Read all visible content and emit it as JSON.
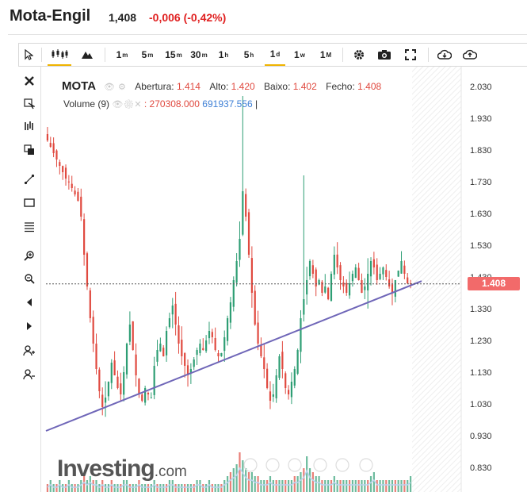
{
  "header": {
    "name": "Mota-Engil",
    "price": "1,408",
    "change": "-0,006 (-0,42%)"
  },
  "toolbar": {
    "timeframes": [
      {
        "num": "1",
        "unit": "m"
      },
      {
        "num": "5",
        "unit": "m"
      },
      {
        "num": "15",
        "unit": "m"
      },
      {
        "num": "30",
        "unit": "m"
      },
      {
        "num": "1",
        "unit": "h"
      },
      {
        "num": "5",
        "unit": "h"
      },
      {
        "num": "1",
        "unit": "d"
      },
      {
        "num": "1",
        "unit": "w"
      },
      {
        "num": "1",
        "unit": "M"
      }
    ],
    "active_timeframe": "1d",
    "icons": [
      "cursor-icon",
      "candles-icon",
      "mountain-icon",
      "gear-icon",
      "camera-icon",
      "fullscreen-icon",
      "download-icon",
      "upload-icon"
    ]
  },
  "left_tools": [
    "close-icon",
    "cursor-cross-icon",
    "indicators-icon",
    "copy-icon",
    "trendline-icon",
    "rectangle-icon",
    "fibonacci-icon",
    "zoom-in-icon",
    "zoom-out-icon",
    "back-icon",
    "forward-icon",
    "person-add-icon",
    "person-remove-icon"
  ],
  "legend": {
    "symbol": "MOTA",
    "open_label": "Abertura:",
    "open": "1.414",
    "high_label": "Alto:",
    "high": "1.420",
    "low_label": "Baixo:",
    "low": "1.402",
    "close_label": "Fecho:",
    "close": "1.408",
    "volume_label": "Volume (9)",
    "volume_value_1": ": 270308.000",
    "volume_value_2": "691937.556",
    "volume_sep": "|"
  },
  "last_price_badge": "1.408",
  "logo": {
    "main": "Investing",
    "suffix": ".com"
  },
  "colors": {
    "up": "#2e9e74",
    "down": "#e0493f",
    "trendline": "#6f66b8",
    "badge": "#f26a6a",
    "volume": "#b9d3ee"
  },
  "chart_data": {
    "type": "candlestick",
    "symbol": "MOTA",
    "y_ticks": [
      "2.030",
      "1.930",
      "1.830",
      "1.730",
      "1.630",
      "1.530",
      "1.430",
      "1.330",
      "1.230",
      "1.130",
      "1.030",
      "0.930",
      "0.830"
    ],
    "ylim": [
      0.8,
      2.06
    ],
    "last_price": 1.408,
    "trendline": [
      {
        "x": 0.0,
        "y": 0.945
      },
      {
        "x": 1.0,
        "y": 1.417
      }
    ],
    "close_series": [
      1.86,
      1.84,
      1.82,
      1.8,
      1.78,
      1.76,
      1.74,
      1.73,
      1.71,
      1.69,
      1.67,
      1.62,
      1.5,
      1.4,
      1.3,
      1.22,
      1.14,
      1.07,
      1.02,
      1.05,
      1.1,
      1.16,
      1.12,
      1.08,
      1.06,
      1.13,
      1.22,
      1.28,
      1.2,
      1.12,
      1.06,
      1.04,
      1.08,
      1.06,
      1.05,
      1.15,
      1.2,
      1.22,
      1.18,
      1.26,
      1.3,
      1.34,
      1.28,
      1.22,
      1.18,
      1.15,
      1.12,
      1.14,
      1.17,
      1.2,
      1.22,
      1.2,
      1.23,
      1.26,
      1.24,
      1.2,
      1.18,
      1.19,
      1.24,
      1.3,
      1.35,
      1.42,
      1.48,
      1.55,
      1.7,
      1.62,
      1.5,
      1.38,
      1.28,
      1.22,
      1.18,
      1.14,
      1.08,
      1.04,
      1.06,
      1.12,
      1.18,
      1.14,
      1.08,
      1.06,
      1.1,
      1.14,
      1.2,
      1.3,
      1.36,
      1.42,
      1.48,
      1.44,
      1.4,
      1.42,
      1.38,
      1.4,
      1.36,
      1.44,
      1.5,
      1.46,
      1.42,
      1.4,
      1.38,
      1.41,
      1.44,
      1.46,
      1.42,
      1.38,
      1.4,
      1.44,
      1.48,
      1.46,
      1.42,
      1.44,
      1.46,
      1.43,
      1.4,
      1.38,
      1.42,
      1.45,
      1.48,
      1.44,
      1.41,
      1.408
    ],
    "volume_series": [
      0.2,
      0.3,
      0.2,
      0.2,
      0.3,
      0.2,
      0.2,
      0.3,
      0.2,
      0.2,
      0.2,
      0.3,
      0.4,
      0.3,
      0.4,
      0.3,
      0.3,
      0.2,
      0.3,
      0.2,
      0.2,
      0.3,
      0.2,
      0.2,
      0.2,
      0.3,
      0.3,
      0.2,
      0.2,
      0.2,
      0.3,
      0.2,
      0.2,
      0.2,
      0.2,
      0.3,
      0.2,
      0.2,
      0.2,
      0.2,
      0.3,
      0.3,
      0.2,
      0.2,
      0.2,
      0.2,
      0.2,
      0.2,
      0.2,
      0.3,
      0.3,
      0.2,
      0.2,
      0.3,
      0.2,
      0.2,
      0.2,
      0.2,
      0.3,
      0.4,
      0.5,
      0.6,
      0.7,
      1.0,
      0.8,
      0.6,
      0.5,
      0.5,
      0.4,
      0.4,
      0.3,
      0.3,
      0.3,
      0.4,
      0.3,
      0.3,
      0.3,
      0.3,
      0.3,
      0.3,
      0.3,
      0.4,
      0.4,
      0.5,
      0.6,
      0.9,
      0.6,
      0.5,
      0.4,
      0.4,
      0.3,
      0.3,
      0.3,
      0.3,
      0.4,
      0.3,
      0.3,
      0.3,
      0.3,
      0.3,
      0.3,
      0.3,
      0.3,
      0.3,
      0.3,
      0.3,
      0.4,
      0.5,
      0.3,
      0.3,
      0.3,
      0.3,
      0.3,
      0.3,
      0.3,
      0.3,
      0.3,
      0.3,
      0.3,
      0.4
    ]
  }
}
